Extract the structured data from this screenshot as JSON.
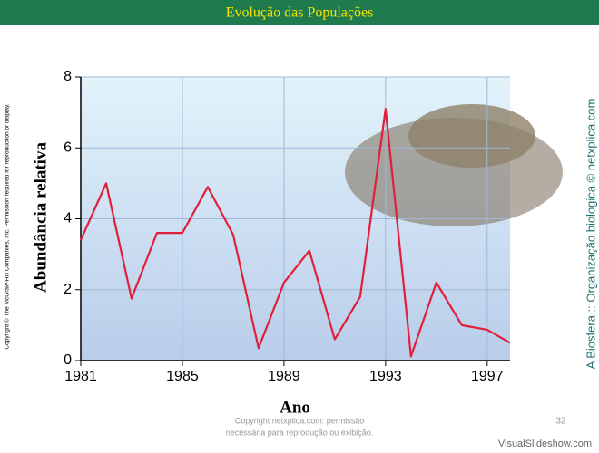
{
  "slide": {
    "title": "Evolução das Populações",
    "side_copyright": "Copyright © The McGraw-Hill Companies, Inc. Permission required for reproduction or display.",
    "side_credit": "A Biosfera :: Organização biologica © netxplica.com",
    "footer_lines": [
      "Copyright netxplica.com: permissão",
      "necessária para reprodução ou exibição."
    ],
    "page_number": "32",
    "watermark": "VisualSlideshow.com"
  },
  "chart_data": {
    "type": "line",
    "x_label": "Ano",
    "y_label": "Abundância relativa",
    "x": [
      1981,
      1982,
      1983,
      1984,
      1985,
      1986,
      1987,
      1988,
      1989,
      1990,
      1991,
      1992,
      1993,
      1994,
      1995,
      1995.5,
      1996,
      1997,
      1997.9
    ],
    "series": [
      {
        "name": "Abundância relativa",
        "color": "#e0203a",
        "values": [
          3.4,
          5.0,
          1.75,
          3.6,
          3.6,
          4.9,
          3.55,
          0.35,
          2.2,
          3.1,
          0.6,
          1.8,
          7.1,
          0.12,
          2.2,
          1.6,
          1.0,
          0.87,
          0.5
        ]
      }
    ],
    "xlim": [
      1981,
      1997.9
    ],
    "ylim": [
      0,
      8
    ],
    "xticks": [
      1981,
      1985,
      1989,
      1993,
      1997
    ],
    "yticks": [
      0,
      2,
      4,
      6,
      8
    ],
    "grid": true
  }
}
